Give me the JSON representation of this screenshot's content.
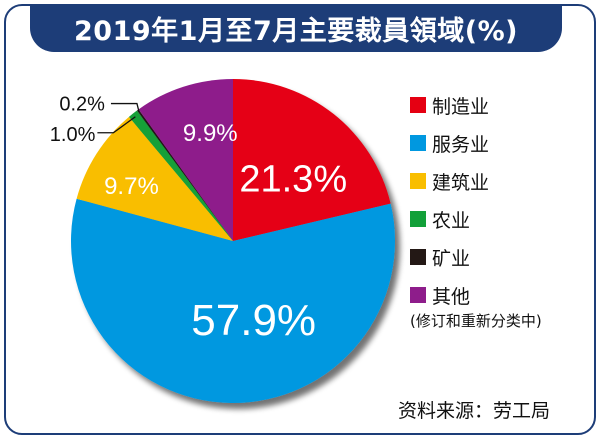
{
  "title": "2019年1月至7月主要裁員領域(%)",
  "source": "资料来源：劳工局",
  "chart_data": {
    "type": "pie",
    "title": "2019年1月至7月主要裁員領域(%)",
    "slices": [
      {
        "label": "制造业",
        "value": 21.3,
        "display": "21.3%",
        "color": "#e50012"
      },
      {
        "label": "服务业",
        "value": 57.9,
        "display": "57.9%",
        "color": "#0098e0"
      },
      {
        "label": "建筑业",
        "value": 9.7,
        "display": "9.7%",
        "color": "#f9be00"
      },
      {
        "label": "农业",
        "value": 1.0,
        "display": "1.0%",
        "color": "#12a039"
      },
      {
        "label": "矿业",
        "value": 0.2,
        "display": "0.2%",
        "color": "#231815"
      },
      {
        "label": "其他",
        "value": 9.9,
        "display": "9.9%",
        "color": "#8e1d8b",
        "note": "(修订和重新分类中)"
      }
    ],
    "legend_position": "right"
  }
}
